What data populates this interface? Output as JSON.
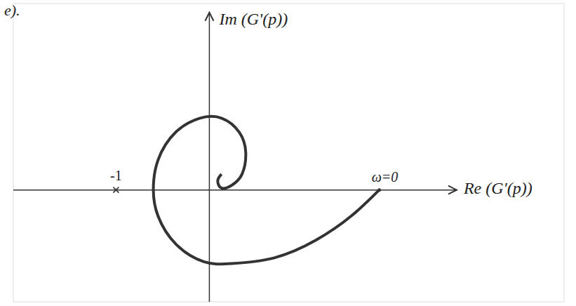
{
  "chart_data": {
    "type": "line",
    "caption": "e).",
    "xlabel": "Re (G'(p))",
    "ylabel": "Im (G'(p))",
    "x": [
      1.82,
      1.52,
      1.14,
      0.69,
      0.24,
      -0.06,
      -0.36,
      -0.55,
      -0.6,
      -0.55,
      -0.36,
      -0.1,
      0.13,
      0.32,
      0.39,
      0.35,
      0.24,
      0.13,
      0.09,
      0.13
    ],
    "values": [
      0,
      -0.28,
      -0.54,
      -0.73,
      -0.79,
      -0.77,
      -0.58,
      -0.28,
      0,
      0.32,
      0.62,
      0.77,
      0.77,
      0.62,
      0.4,
      0.17,
      0.05,
      0.02,
      0.1,
      0.17
    ],
    "color": "#333333",
    "xlim": [
      -2.1,
      3.8
    ],
    "ylim": [
      -1.2,
      2.0
    ],
    "xticks": [
      -1
    ],
    "grid": false,
    "annotations": [
      {
        "text": "ω=0",
        "x": 1.82,
        "y": 0
      }
    ]
  }
}
